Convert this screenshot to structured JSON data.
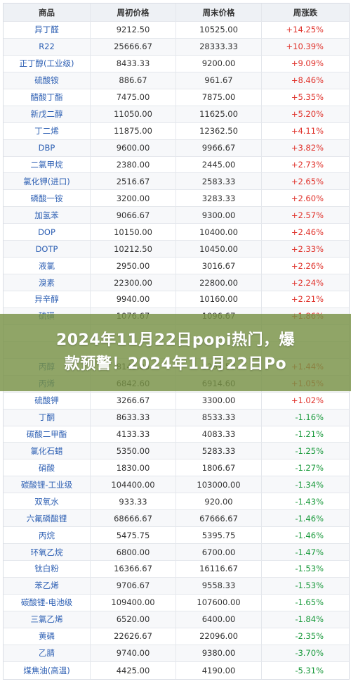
{
  "table": {
    "headers": [
      "商品",
      "周初价格",
      "周末价格",
      "周涨跌"
    ],
    "rows": [
      [
        "异丁醛",
        "9212.50",
        "10525.00",
        "+14.25%"
      ],
      [
        "R22",
        "25666.67",
        "28333.33",
        "+10.39%"
      ],
      [
        "正丁醇(工业级)",
        "8433.33",
        "9200.00",
        "+9.09%"
      ],
      [
        "硫酸铵",
        "886.67",
        "961.67",
        "+8.46%"
      ],
      [
        "醋酸丁酯",
        "7475.00",
        "7875.00",
        "+5.35%"
      ],
      [
        "新戊二醇",
        "11050.00",
        "11625.00",
        "+5.20%"
      ],
      [
        "丁二烯",
        "11875.00",
        "12362.50",
        "+4.11%"
      ],
      [
        "DBP",
        "9600.00",
        "9966.67",
        "+3.82%"
      ],
      [
        "二氯甲烷",
        "2380.00",
        "2445.00",
        "+2.73%"
      ],
      [
        "氯化钾(进口)",
        "2516.67",
        "2583.33",
        "+2.65%"
      ],
      [
        "磷酸一铵",
        "3200.00",
        "3283.33",
        "+2.60%"
      ],
      [
        "加氢苯",
        "9066.67",
        "9300.00",
        "+2.57%"
      ],
      [
        "DOP",
        "10150.00",
        "10400.00",
        "+2.46%"
      ],
      [
        "DOTP",
        "10212.50",
        "10450.00",
        "+2.33%"
      ],
      [
        "液氯",
        "2950.00",
        "3016.67",
        "+2.26%"
      ],
      [
        "溴素",
        "22300.00",
        "22800.00",
        "+2.24%"
      ],
      [
        "异辛醇",
        "9940.00",
        "10160.00",
        "+2.21%"
      ],
      [
        "硫磺",
        "1076.67",
        "1096.67",
        "+1.86%"
      ],
      [
        "",
        "",
        "",
        ""
      ],
      [
        "",
        "",
        "",
        ""
      ],
      [
        "丙醇",
        "8145.00",
        "8262.50",
        "+1.44%"
      ],
      [
        "丙烯",
        "6842.60",
        "6914.60",
        "+1.05%"
      ],
      [
        "硫酸钾",
        "3266.67",
        "3300.00",
        "+1.02%"
      ],
      [
        "丁酮",
        "8633.33",
        "8533.33",
        "-1.16%"
      ],
      [
        "碳酸二甲酯",
        "4133.33",
        "4083.33",
        "-1.21%"
      ],
      [
        "氯化石蜡",
        "5350.00",
        "5283.33",
        "-1.25%"
      ],
      [
        "硝酸",
        "1830.00",
        "1806.67",
        "-1.27%"
      ],
      [
        "碳酸锂-工业级",
        "104400.00",
        "103000.00",
        "-1.34%"
      ],
      [
        "双氧水",
        "933.33",
        "920.00",
        "-1.43%"
      ],
      [
        "六氟磷酸锂",
        "68666.67",
        "67666.67",
        "-1.46%"
      ],
      [
        "丙烷",
        "5475.75",
        "5395.75",
        "-1.46%"
      ],
      [
        "环氧乙烷",
        "6800.00",
        "6700.00",
        "-1.47%"
      ],
      [
        "钛白粉",
        "16366.67",
        "16116.67",
        "-1.53%"
      ],
      [
        "苯乙烯",
        "9706.67",
        "9558.33",
        "-1.53%"
      ],
      [
        "碳酸锂-电池级",
        "109400.00",
        "107600.00",
        "-1.65%"
      ],
      [
        "三氯乙烯",
        "6520.00",
        "6400.00",
        "-1.84%"
      ],
      [
        "黄磷",
        "22626.67",
        "22096.00",
        "-2.35%"
      ],
      [
        "乙腈",
        "9740.00",
        "9380.00",
        "-3.70%"
      ],
      [
        "煤焦油(高温)",
        "4425.00",
        "4190.00",
        "-5.31%"
      ]
    ]
  },
  "banner": {
    "line1": "2024年11月22日popi热门，爆",
    "line2": "款预警！2024年11月22日Po"
  },
  "colors": {
    "up": "#e0322b",
    "down": "#1a9a3c",
    "banner_bg": "#7a9146"
  }
}
